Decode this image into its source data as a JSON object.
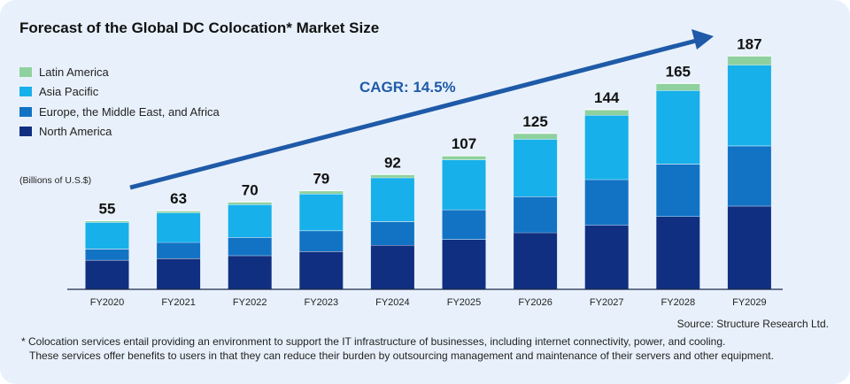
{
  "title": "Forecast of the Global DC Colocation* Market Size",
  "unit_label": "(Billions of U.S.$)",
  "source": "Source: Structure Research Ltd.",
  "footnote": {
    "line1": "* Colocation services entail providing an environment to support the IT infrastructure of businesses, including internet connectivity, power, and cooling.",
    "line2": "These services offer benefits to users in that they can reduce their burden by outsourcing management and maintenance of their servers and other equipment."
  },
  "cagr_label": "CAGR: 14.5%",
  "legend": [
    {
      "label": "Latin America",
      "color": "#8fd19e"
    },
    {
      "label": "Asia Pacific",
      "color": "#17b0ea"
    },
    {
      "label": "Europe, the Middle East, and Africa",
      "color": "#1273c4"
    },
    {
      "label": "North America",
      "color": "#102f80"
    }
  ],
  "chart_data": {
    "type": "bar",
    "stacked": true,
    "categories": [
      "FY2020",
      "FY2021",
      "FY2022",
      "FY2023",
      "FY2024",
      "FY2025",
      "FY2026",
      "FY2027",
      "FY2028",
      "FY2029"
    ],
    "totals": [
      "55",
      "63",
      "70",
      "79",
      "92",
      "107",
      "125",
      "144",
      "165",
      "187"
    ],
    "series": [
      {
        "name": "North America",
        "color": "#102f80",
        "values": [
          23.5,
          24.8,
          27.1,
          30.5,
          35.5,
          40.1,
          45.5,
          51.6,
          58.5,
          66.8
        ]
      },
      {
        "name": "Europe, the Middle East, and Africa",
        "color": "#1273c4",
        "values": [
          9.0,
          12.9,
          14.7,
          16.6,
          19.0,
          23.8,
          29.0,
          36.5,
          42.1,
          48.3
        ]
      },
      {
        "name": "Asia Pacific",
        "color": "#17b0ea",
        "values": [
          21.3,
          23.8,
          26.3,
          29.5,
          35.0,
          40.1,
          46.0,
          51.6,
          58.9,
          64.8
        ]
      },
      {
        "name": "Latin America",
        "color": "#8fd19e",
        "values": [
          1.2,
          1.5,
          1.9,
          2.4,
          2.5,
          3.0,
          4.5,
          4.3,
          5.5,
          7.1
        ]
      }
    ],
    "ylim": [
      0,
      195
    ],
    "legend_position": "top-left",
    "grid": false
  }
}
